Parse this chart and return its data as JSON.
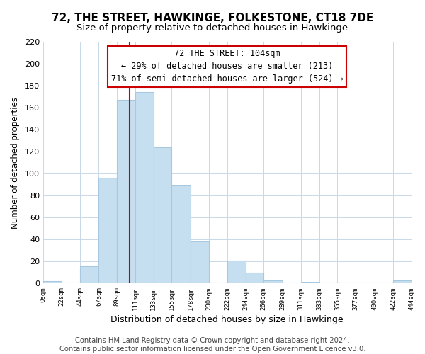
{
  "title": "72, THE STREET, HAWKINGE, FOLKESTONE, CT18 7DE",
  "subtitle": "Size of property relative to detached houses in Hawkinge",
  "xlabel": "Distribution of detached houses by size in Hawkinge",
  "ylabel": "Number of detached properties",
  "bar_left_edges": [
    0,
    22,
    44,
    67,
    89,
    111,
    133,
    155,
    178,
    200,
    222,
    244,
    266,
    289,
    311,
    333,
    355,
    377,
    400,
    422
  ],
  "bar_heights": [
    2,
    0,
    16,
    96,
    167,
    174,
    124,
    89,
    38,
    0,
    21,
    10,
    3,
    0,
    1,
    0,
    0,
    0,
    0,
    3
  ],
  "bar_widths": [
    22,
    22,
    23,
    22,
    22,
    22,
    22,
    23,
    22,
    22,
    22,
    22,
    23,
    22,
    22,
    22,
    22,
    23,
    22,
    22
  ],
  "bar_color": "#c6dff0",
  "bar_edgecolor": "#a8c8e0",
  "bar_linewidth": 0.8,
  "vline_x": 104,
  "vline_color": "#cc0000",
  "vline_linewidth": 1.5,
  "annotation_line1": "72 THE STREET: 104sqm",
  "annotation_line2": "← 29% of detached houses are smaller (213)",
  "annotation_line3": "71% of semi-detached houses are larger (524) →",
  "annotation_fontsize": 8.5,
  "tick_labels": [
    "0sqm",
    "22sqm",
    "44sqm",
    "67sqm",
    "89sqm",
    "111sqm",
    "133sqm",
    "155sqm",
    "178sqm",
    "200sqm",
    "222sqm",
    "244sqm",
    "266sqm",
    "289sqm",
    "311sqm",
    "333sqm",
    "355sqm",
    "377sqm",
    "400sqm",
    "422sqm",
    "444sqm"
  ],
  "tick_positions": [
    0,
    22,
    44,
    67,
    89,
    111,
    133,
    155,
    178,
    200,
    222,
    244,
    266,
    289,
    311,
    333,
    355,
    377,
    400,
    422,
    444
  ],
  "ylim": [
    0,
    220
  ],
  "xlim": [
    0,
    444
  ],
  "yticks": [
    0,
    20,
    40,
    60,
    80,
    100,
    120,
    140,
    160,
    180,
    200,
    220
  ],
  "grid_color": "#c8d8e8",
  "background_color": "#ffffff",
  "footer_text": "Contains HM Land Registry data © Crown copyright and database right 2024.\nContains public sector information licensed under the Open Government Licence v3.0.",
  "title_fontsize": 11,
  "subtitle_fontsize": 9.5,
  "xlabel_fontsize": 9,
  "ylabel_fontsize": 8.5,
  "footer_fontsize": 7.2
}
